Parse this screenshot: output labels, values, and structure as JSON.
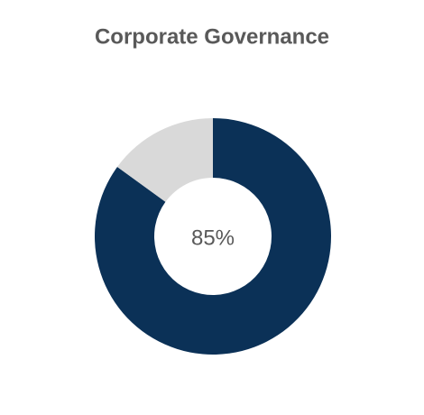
{
  "chart_data": {
    "type": "donut",
    "title": "Corporate Governance",
    "values": [
      85,
      15
    ],
    "value_labels": [
      "85%",
      null
    ],
    "colors": [
      "#0b3157",
      "#d9d9d9"
    ]
  }
}
